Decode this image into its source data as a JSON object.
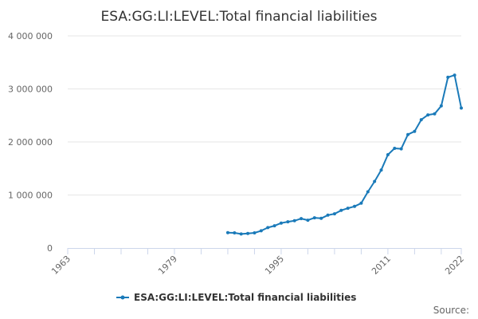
{
  "chart_data": {
    "type": "line",
    "title": "ESA:GG:LI:LEVEL:Total financial liabilities",
    "xlabel": "",
    "ylabel": "",
    "xlim": [
      1963,
      2022
    ],
    "ylim": [
      0,
      4000000
    ],
    "x_ticks": [
      1963,
      1979,
      1995,
      2011,
      2022
    ],
    "y_ticks": [
      {
        "value": 0,
        "label": "0"
      },
      {
        "value": 1000000,
        "label": "1 000 000"
      },
      {
        "value": 2000000,
        "label": "2 000 000"
      },
      {
        "value": 3000000,
        "label": "3 000 000"
      },
      {
        "value": 4000000,
        "label": "4 000 000"
      }
    ],
    "grid": true,
    "legend_position": "bottom",
    "color": "#1a7ab9",
    "series": [
      {
        "name": "ESA:GG:LI:LEVEL:Total financial liabilities",
        "x": [
          1987,
          1988,
          1989,
          1990,
          1991,
          1992,
          1993,
          1994,
          1995,
          1996,
          1997,
          1998,
          1999,
          2000,
          2001,
          2002,
          2003,
          2004,
          2005,
          2006,
          2007,
          2008,
          2009,
          2010,
          2011,
          2012,
          2013,
          2014,
          2015,
          2016,
          2017,
          2018,
          2019,
          2020,
          2021,
          2022
        ],
        "values": [
          290000,
          285000,
          265000,
          275000,
          285000,
          325000,
          385000,
          420000,
          470000,
          495000,
          515000,
          555000,
          525000,
          570000,
          560000,
          620000,
          645000,
          710000,
          750000,
          785000,
          845000,
          1060000,
          1255000,
          1470000,
          1760000,
          1880000,
          1870000,
          2140000,
          2200000,
          2420000,
          2510000,
          2530000,
          2680000,
          3220000,
          3260000,
          2640000
        ]
      }
    ]
  },
  "legend": {
    "label": "ESA:GG:LI:LEVEL:Total financial liabilities"
  },
  "source_label": "Source:"
}
